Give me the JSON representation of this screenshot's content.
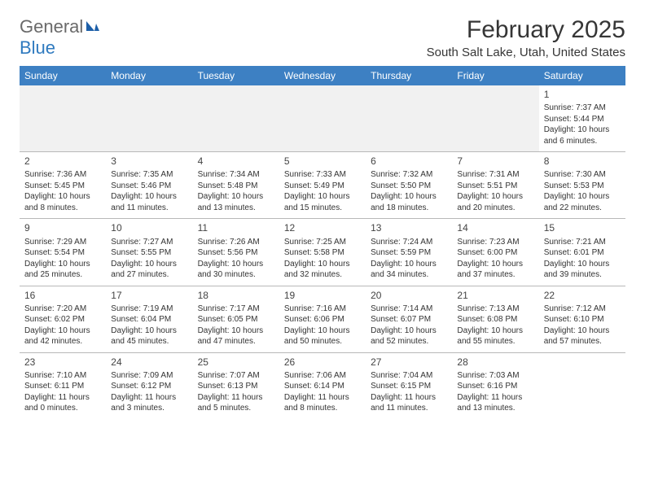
{
  "logo": {
    "part1": "General",
    "part2": "Blue"
  },
  "title": "February 2025",
  "location": "South Salt Lake, Utah, United States",
  "colors": {
    "header_bg": "#3d80c3",
    "header_text": "#ffffff",
    "logo_gray": "#6a6a6a",
    "logo_blue": "#2f7abf",
    "text": "#333333",
    "border": "#b8b8b8",
    "alt_bg": "#f1f1f1",
    "page_bg": "#ffffff"
  },
  "day_headers": [
    "Sunday",
    "Monday",
    "Tuesday",
    "Wednesday",
    "Thursday",
    "Friday",
    "Saturday"
  ],
  "weeks": [
    [
      null,
      null,
      null,
      null,
      null,
      null,
      {
        "n": "1",
        "sr": "Sunrise: 7:37 AM",
        "ss": "Sunset: 5:44 PM",
        "d1": "Daylight: 10 hours",
        "d2": "and 6 minutes."
      }
    ],
    [
      {
        "n": "2",
        "sr": "Sunrise: 7:36 AM",
        "ss": "Sunset: 5:45 PM",
        "d1": "Daylight: 10 hours",
        "d2": "and 8 minutes."
      },
      {
        "n": "3",
        "sr": "Sunrise: 7:35 AM",
        "ss": "Sunset: 5:46 PM",
        "d1": "Daylight: 10 hours",
        "d2": "and 11 minutes."
      },
      {
        "n": "4",
        "sr": "Sunrise: 7:34 AM",
        "ss": "Sunset: 5:48 PM",
        "d1": "Daylight: 10 hours",
        "d2": "and 13 minutes."
      },
      {
        "n": "5",
        "sr": "Sunrise: 7:33 AM",
        "ss": "Sunset: 5:49 PM",
        "d1": "Daylight: 10 hours",
        "d2": "and 15 minutes."
      },
      {
        "n": "6",
        "sr": "Sunrise: 7:32 AM",
        "ss": "Sunset: 5:50 PM",
        "d1": "Daylight: 10 hours",
        "d2": "and 18 minutes."
      },
      {
        "n": "7",
        "sr": "Sunrise: 7:31 AM",
        "ss": "Sunset: 5:51 PM",
        "d1": "Daylight: 10 hours",
        "d2": "and 20 minutes."
      },
      {
        "n": "8",
        "sr": "Sunrise: 7:30 AM",
        "ss": "Sunset: 5:53 PM",
        "d1": "Daylight: 10 hours",
        "d2": "and 22 minutes."
      }
    ],
    [
      {
        "n": "9",
        "sr": "Sunrise: 7:29 AM",
        "ss": "Sunset: 5:54 PM",
        "d1": "Daylight: 10 hours",
        "d2": "and 25 minutes."
      },
      {
        "n": "10",
        "sr": "Sunrise: 7:27 AM",
        "ss": "Sunset: 5:55 PM",
        "d1": "Daylight: 10 hours",
        "d2": "and 27 minutes."
      },
      {
        "n": "11",
        "sr": "Sunrise: 7:26 AM",
        "ss": "Sunset: 5:56 PM",
        "d1": "Daylight: 10 hours",
        "d2": "and 30 minutes."
      },
      {
        "n": "12",
        "sr": "Sunrise: 7:25 AM",
        "ss": "Sunset: 5:58 PM",
        "d1": "Daylight: 10 hours",
        "d2": "and 32 minutes."
      },
      {
        "n": "13",
        "sr": "Sunrise: 7:24 AM",
        "ss": "Sunset: 5:59 PM",
        "d1": "Daylight: 10 hours",
        "d2": "and 34 minutes."
      },
      {
        "n": "14",
        "sr": "Sunrise: 7:23 AM",
        "ss": "Sunset: 6:00 PM",
        "d1": "Daylight: 10 hours",
        "d2": "and 37 minutes."
      },
      {
        "n": "15",
        "sr": "Sunrise: 7:21 AM",
        "ss": "Sunset: 6:01 PM",
        "d1": "Daylight: 10 hours",
        "d2": "and 39 minutes."
      }
    ],
    [
      {
        "n": "16",
        "sr": "Sunrise: 7:20 AM",
        "ss": "Sunset: 6:02 PM",
        "d1": "Daylight: 10 hours",
        "d2": "and 42 minutes."
      },
      {
        "n": "17",
        "sr": "Sunrise: 7:19 AM",
        "ss": "Sunset: 6:04 PM",
        "d1": "Daylight: 10 hours",
        "d2": "and 45 minutes."
      },
      {
        "n": "18",
        "sr": "Sunrise: 7:17 AM",
        "ss": "Sunset: 6:05 PM",
        "d1": "Daylight: 10 hours",
        "d2": "and 47 minutes."
      },
      {
        "n": "19",
        "sr": "Sunrise: 7:16 AM",
        "ss": "Sunset: 6:06 PM",
        "d1": "Daylight: 10 hours",
        "d2": "and 50 minutes."
      },
      {
        "n": "20",
        "sr": "Sunrise: 7:14 AM",
        "ss": "Sunset: 6:07 PM",
        "d1": "Daylight: 10 hours",
        "d2": "and 52 minutes."
      },
      {
        "n": "21",
        "sr": "Sunrise: 7:13 AM",
        "ss": "Sunset: 6:08 PM",
        "d1": "Daylight: 10 hours",
        "d2": "and 55 minutes."
      },
      {
        "n": "22",
        "sr": "Sunrise: 7:12 AM",
        "ss": "Sunset: 6:10 PM",
        "d1": "Daylight: 10 hours",
        "d2": "and 57 minutes."
      }
    ],
    [
      {
        "n": "23",
        "sr": "Sunrise: 7:10 AM",
        "ss": "Sunset: 6:11 PM",
        "d1": "Daylight: 11 hours",
        "d2": "and 0 minutes."
      },
      {
        "n": "24",
        "sr": "Sunrise: 7:09 AM",
        "ss": "Sunset: 6:12 PM",
        "d1": "Daylight: 11 hours",
        "d2": "and 3 minutes."
      },
      {
        "n": "25",
        "sr": "Sunrise: 7:07 AM",
        "ss": "Sunset: 6:13 PM",
        "d1": "Daylight: 11 hours",
        "d2": "and 5 minutes."
      },
      {
        "n": "26",
        "sr": "Sunrise: 7:06 AM",
        "ss": "Sunset: 6:14 PM",
        "d1": "Daylight: 11 hours",
        "d2": "and 8 minutes."
      },
      {
        "n": "27",
        "sr": "Sunrise: 7:04 AM",
        "ss": "Sunset: 6:15 PM",
        "d1": "Daylight: 11 hours",
        "d2": "and 11 minutes."
      },
      {
        "n": "28",
        "sr": "Sunrise: 7:03 AM",
        "ss": "Sunset: 6:16 PM",
        "d1": "Daylight: 11 hours",
        "d2": "and 13 minutes."
      },
      null
    ]
  ]
}
